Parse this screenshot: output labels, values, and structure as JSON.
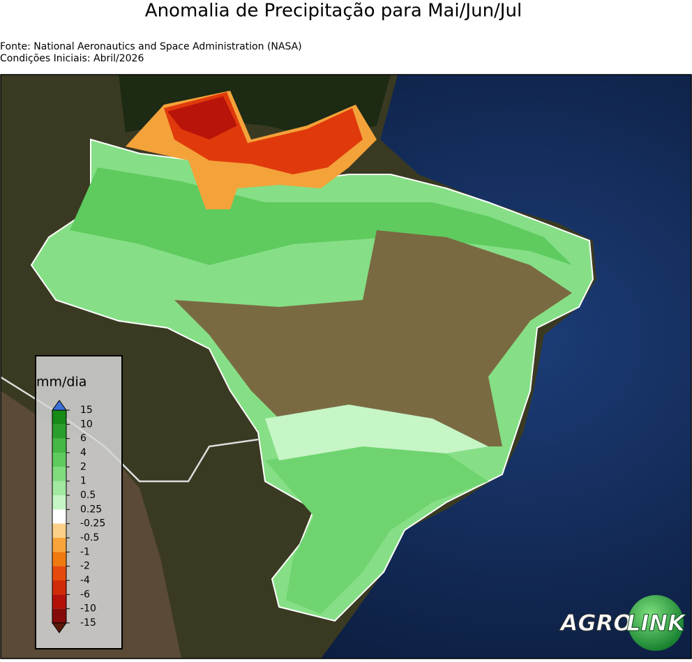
{
  "header": {
    "title": "Anomalia de Precipitação para Mai/Jun/Jul",
    "source": "Fonte: National Aeronautics and Space Administration (NASA)",
    "initial": "Condições Iniciais: Abril/2026"
  },
  "colorbar": {
    "label": "mm/dia",
    "ticks": [
      15,
      10,
      6,
      4,
      2,
      1,
      0.5,
      0.25,
      -0.25,
      -0.5,
      -1,
      -2,
      -4,
      -6,
      -10,
      -15
    ],
    "colors": [
      "#178a17",
      "#2a9e2a",
      "#45b845",
      "#5fcb5f",
      "#7fdc7f",
      "#a2e9a2",
      "#c6f5c6",
      "#ffffff",
      "#fdd089",
      "#f9a43a",
      "#f07a10",
      "#e44a0c",
      "#d02a08",
      "#b3100a",
      "#850a0a"
    ],
    "over_color": "#3b6fd8",
    "under_color": "#5a1a0a"
  },
  "logo": {
    "left": "AGRO",
    "right": "LINK"
  }
}
